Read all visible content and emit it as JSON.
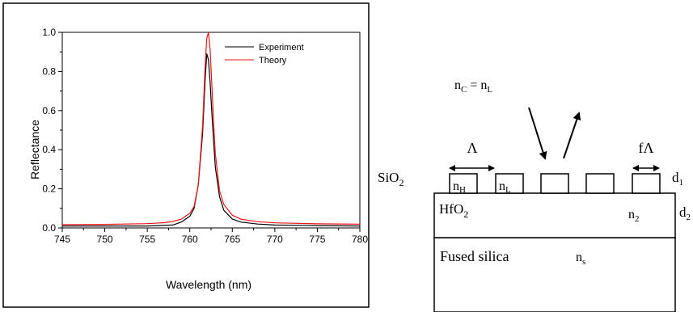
{
  "chart_data": {
    "type": "line",
    "title": "",
    "xlabel": "Wavelength (nm)",
    "ylabel": "Reflectance",
    "xlim": [
      745,
      780
    ],
    "ylim": [
      0.0,
      1.0
    ],
    "xticks": [
      745,
      750,
      755,
      760,
      765,
      770,
      775,
      780
    ],
    "yticks": [
      0.0,
      0.2,
      0.4,
      0.6,
      0.8,
      1.0
    ],
    "xtick_labels": [
      "745",
      "750",
      "755",
      "760",
      "765",
      "770",
      "775",
      "780"
    ],
    "ytick_labels": [
      "0.0",
      "0.2",
      "0.4",
      "0.6",
      "0.8",
      "1.0"
    ],
    "grid": false,
    "legend_position": "top-right",
    "series": [
      {
        "name": "Experiment",
        "color": "#000000",
        "x": [
          745,
          750,
          755,
          758,
          759,
          760,
          760.5,
          761,
          761.5,
          761.8,
          762,
          762.2,
          762.4,
          762.6,
          762.8,
          763,
          763.5,
          764,
          765,
          766,
          768,
          770,
          775,
          780
        ],
        "y": [
          0.01,
          0.01,
          0.01,
          0.015,
          0.03,
          0.06,
          0.1,
          0.22,
          0.48,
          0.75,
          0.89,
          0.86,
          0.74,
          0.58,
          0.44,
          0.31,
          0.16,
          0.09,
          0.045,
          0.03,
          0.02,
          0.015,
          0.012,
          0.01
        ]
      },
      {
        "name": "Theory",
        "color": "#e8171c",
        "x": [
          745,
          750,
          755,
          757,
          758,
          759,
          760,
          760.5,
          761,
          761.5,
          761.8,
          762,
          762.2,
          762.4,
          762.6,
          762.8,
          763,
          763.5,
          764,
          765,
          766,
          768,
          770,
          775,
          780
        ],
        "y": [
          0.017,
          0.018,
          0.022,
          0.027,
          0.033,
          0.045,
          0.075,
          0.11,
          0.22,
          0.52,
          0.82,
          0.97,
          1.0,
          0.91,
          0.72,
          0.53,
          0.38,
          0.19,
          0.12,
          0.065,
          0.045,
          0.032,
          0.026,
          0.021,
          0.019
        ]
      }
    ]
  },
  "diagram": {
    "cover_label_main": "n",
    "cover_label_sub_c": "C",
    "cover_label_eq": " = n",
    "cover_label_sub_l": "L",
    "period_symbol": "Λ",
    "fill_label": "fΛ",
    "grating_material": "SiO",
    "grating_material_sub": "2",
    "n_h_main": "n",
    "n_h_sub": "H",
    "n_l_main": "n",
    "n_l_sub": "L",
    "d1_main": "d",
    "d1_sub": "1",
    "layer_material": "HfO",
    "layer_material_sub": "2",
    "n2_main": "n",
    "n2_sub": "2",
    "d2_main": "d",
    "d2_sub": "2",
    "substrate_label": "Fused silica",
    "ns_main": "n",
    "ns_sub": "s"
  }
}
